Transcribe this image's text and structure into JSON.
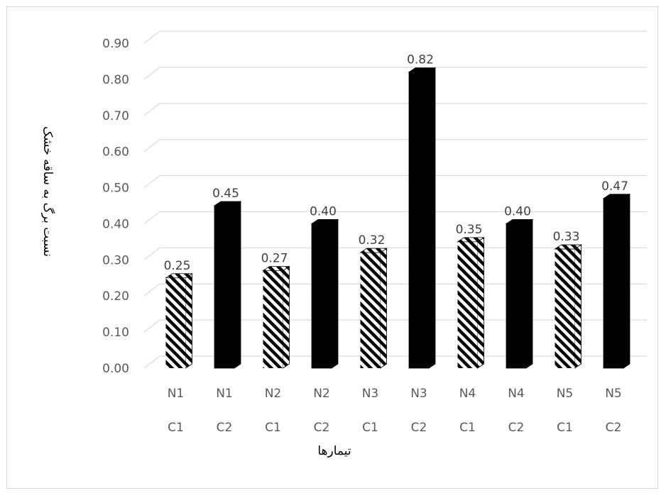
{
  "chart_data": {
    "type": "bar",
    "xlabel": "تیمارها",
    "ylabel": "نسبت برگ به ساقه خشک",
    "ylim": [
      0,
      0.9
    ],
    "yticks": [
      "0.00",
      "0.10",
      "0.20",
      "0.30",
      "0.40",
      "0.50",
      "0.60",
      "0.70",
      "0.80",
      "0.90"
    ],
    "categories": [
      {
        "n": "N1",
        "c": "C1"
      },
      {
        "n": "N1",
        "c": "C2"
      },
      {
        "n": "N2",
        "c": "C1"
      },
      {
        "n": "N2",
        "c": "C2"
      },
      {
        "n": "N3",
        "c": "C1"
      },
      {
        "n": "N3",
        "c": "C2"
      },
      {
        "n": "N4",
        "c": "C1"
      },
      {
        "n": "N4",
        "c": "C2"
      },
      {
        "n": "N5",
        "c": "C1"
      },
      {
        "n": "N5",
        "c": "C2"
      }
    ],
    "values": [
      0.25,
      0.45,
      0.27,
      0.4,
      0.32,
      0.82,
      0.35,
      0.4,
      0.33,
      0.47
    ],
    "data_labels": [
      "0.25",
      "0.45",
      "0.27",
      "0.40",
      "0.32",
      "0.82",
      "0.35",
      "0.40",
      "0.33",
      "0.47"
    ],
    "fills": {
      "C1": "hatched",
      "C2": "solid"
    },
    "colors": {
      "bar": "#000000",
      "grid": "#d9d9d9"
    },
    "grid": true,
    "legend": "none"
  }
}
